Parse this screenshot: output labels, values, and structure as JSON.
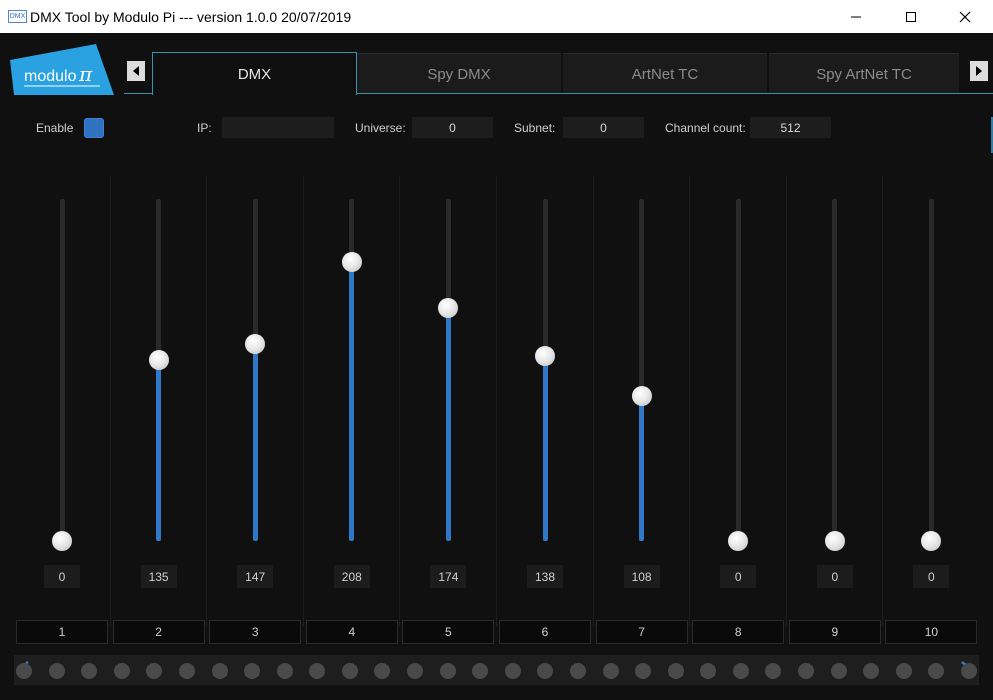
{
  "window": {
    "title": "DMX Tool by Modulo Pi --- version 1.0.0 20/07/2019",
    "app_icon_text": "DMX"
  },
  "logo": {
    "text": "modulo",
    "symbol": "π",
    "color": "#2aa1e0"
  },
  "tabs": [
    {
      "label": "DMX",
      "active": true
    },
    {
      "label": "Spy DMX",
      "active": false
    },
    {
      "label": "ArtNet TC",
      "active": false
    },
    {
      "label": "Spy ArtNet TC",
      "active": false
    }
  ],
  "settings": {
    "enable_label": "Enable",
    "enabled": true,
    "ip_label": "IP:",
    "ip_value": "",
    "universe_label": "Universe:",
    "universe_value": "0",
    "subnet_label": "Subnet:",
    "subnet_value": "0",
    "channel_count_label": "Channel count:",
    "channel_count_value": "512"
  },
  "channels": [
    {
      "number": "1",
      "value": "0"
    },
    {
      "number": "2",
      "value": "135"
    },
    {
      "number": "3",
      "value": "147"
    },
    {
      "number": "4",
      "value": "208"
    },
    {
      "number": "5",
      "value": "174"
    },
    {
      "number": "6",
      "value": "138"
    },
    {
      "number": "7",
      "value": "108"
    },
    {
      "number": "8",
      "value": "0"
    },
    {
      "number": "9",
      "value": "0"
    },
    {
      "number": "10",
      "value": "0"
    }
  ],
  "slider_max": 255,
  "pager": {
    "page_count": 30
  },
  "colors": {
    "accent": "#2f78c8",
    "background": "#101010"
  },
  "icons": {
    "prev_tab": "triangle-left-icon",
    "next_tab": "triangle-right-icon",
    "pager_prev": "chevron-left-icon",
    "pager_next": "chevron-right-icon"
  }
}
